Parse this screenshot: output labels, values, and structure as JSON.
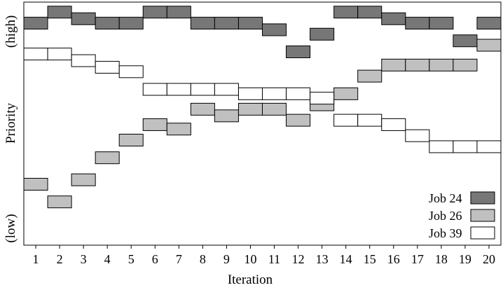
{
  "chart_data": {
    "type": "bar",
    "xlabel": "Iteration",
    "ylabel": "Priority",
    "y_high_label": "(high)",
    "y_low_label": "(low)",
    "x": [
      1,
      2,
      3,
      4,
      5,
      6,
      7,
      8,
      9,
      10,
      11,
      12,
      13,
      14,
      15,
      16,
      17,
      18,
      19,
      20
    ],
    "xlim": [
      0.5,
      20.5
    ],
    "ylim": [
      0,
      100
    ],
    "y_scale": "relative priority (no numeric ticks)",
    "grid": false,
    "legend_position": "bottom-right",
    "series": [
      {
        "name": "Job 24",
        "color": "#777777",
        "values": [
          93,
          98,
          95,
          93,
          93,
          98,
          98,
          93,
          93,
          93,
          90,
          80,
          88,
          98,
          98,
          95,
          93,
          93,
          85,
          93
        ]
      },
      {
        "name": "Job 26",
        "color": "#c0c0c0",
        "values": [
          20,
          12,
          22,
          32,
          40,
          47,
          45,
          54,
          51,
          54,
          54,
          49,
          56,
          61,
          69,
          74,
          74,
          74,
          74,
          83
        ]
      },
      {
        "name": "Job 39",
        "color": "#ffffff",
        "values": [
          79,
          79,
          76,
          73,
          71,
          63,
          63,
          63,
          63,
          61,
          61,
          61,
          59,
          49,
          49,
          47,
          42,
          37,
          37,
          37
        ]
      }
    ]
  }
}
